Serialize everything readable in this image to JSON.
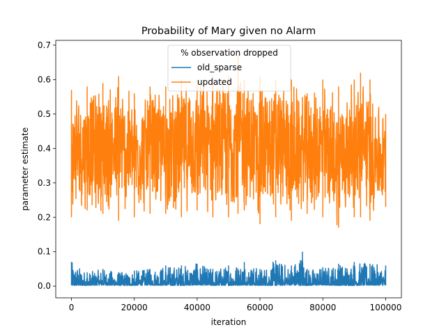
{
  "chart_data": {
    "type": "line",
    "title": "Probability of Mary given no Alarm",
    "xlabel": "iteration",
    "ylabel": "parameter estimate",
    "xlim": [
      -5000,
      105000
    ],
    "ylim": [
      -0.034,
      0.714
    ],
    "x_ticks": [
      0,
      20000,
      40000,
      60000,
      80000,
      100000
    ],
    "y_ticks": [
      0.0,
      0.1,
      0.2,
      0.3,
      0.4,
      0.5,
      0.6,
      0.7
    ],
    "x_tick_labels": [
      "0",
      "20000",
      "40000",
      "60000",
      "80000",
      "100000"
    ],
    "y_tick_labels": [
      "0.0",
      "0.1",
      "0.2",
      "0.3",
      "0.4",
      "0.5",
      "0.6",
      "0.7"
    ],
    "grid": false,
    "legend": {
      "title": "% observation dropped",
      "placement": "upper-center"
    },
    "series": [
      {
        "name": "old_sparse",
        "color": "#1f77b4",
        "x": [
          0,
          5000,
          10000,
          15000,
          20000,
          25000,
          30000,
          35000,
          40000,
          45000,
          50000,
          55000,
          60000,
          65000,
          70000,
          73500,
          75000,
          80000,
          85000,
          90000,
          95000,
          100000
        ],
        "values": [
          0.07,
          0.04,
          0.05,
          0.04,
          0.045,
          0.05,
          0.06,
          0.06,
          0.065,
          0.05,
          0.06,
          0.07,
          0.05,
          0.075,
          0.06,
          0.1,
          0.05,
          0.055,
          0.065,
          0.07,
          0.065,
          0.06
        ],
        "min_values": [
          0.002,
          0.002,
          0.003,
          0.002,
          0.002,
          0.003,
          0.002,
          0.002,
          0.003,
          0.002,
          0.002,
          0.003,
          0.002,
          0.002,
          0.003,
          0.002,
          0.002,
          0.003,
          0.002,
          0.002,
          0.003,
          0.002
        ]
      },
      {
        "name": "updated",
        "color": "#ff7f0e",
        "x": [
          0,
          5000,
          10000,
          15000,
          20000,
          25000,
          30000,
          35000,
          40000,
          45000,
          50000,
          53000,
          55000,
          60000,
          65000,
          70000,
          75000,
          80000,
          85000,
          90000,
          92000,
          95000,
          100000
        ],
        "values": [
          0.57,
          0.58,
          0.59,
          0.61,
          0.56,
          0.58,
          0.58,
          0.6,
          0.6,
          0.61,
          0.61,
          0.67,
          0.6,
          0.61,
          0.6,
          0.6,
          0.56,
          0.6,
          0.58,
          0.6,
          0.62,
          0.6,
          0.5
        ],
        "min_values": [
          0.2,
          0.22,
          0.21,
          0.19,
          0.2,
          0.21,
          0.21,
          0.2,
          0.22,
          0.2,
          0.2,
          0.21,
          0.22,
          0.18,
          0.2,
          0.19,
          0.21,
          0.2,
          0.17,
          0.2,
          0.2,
          0.19,
          0.23
        ]
      }
    ]
  }
}
